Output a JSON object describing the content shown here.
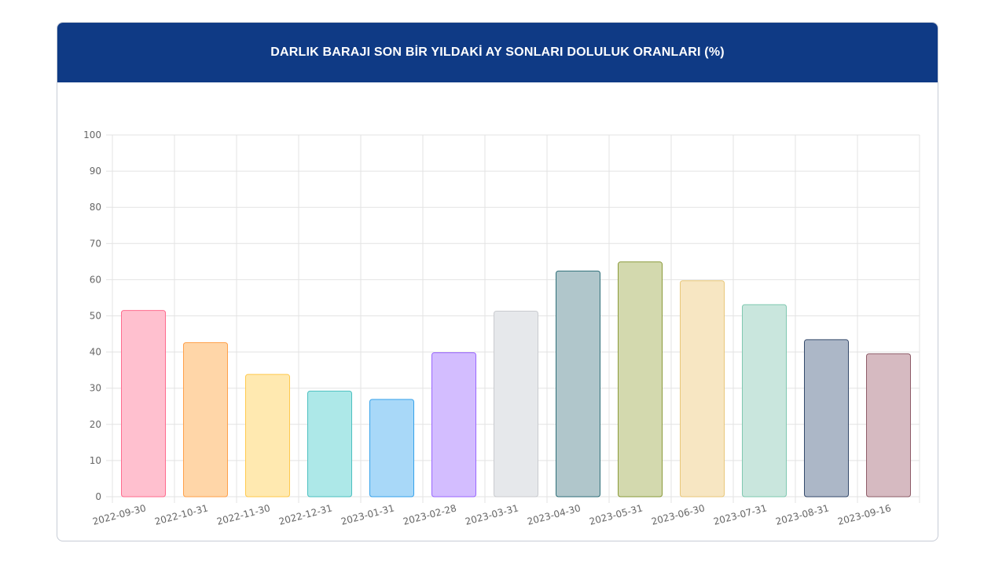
{
  "chart_data": {
    "type": "bar",
    "title": "DARLIK BARAJI SON BİR YILDAKİ AY SONLARI DOLULUK ORANLARI (%)",
    "categories": [
      "2022-09-30",
      "2022-10-31",
      "2022-11-30",
      "2022-12-31",
      "2023-01-31",
      "2023-02-28",
      "2023-03-31",
      "2023-04-30",
      "2023-05-31",
      "2023-06-30",
      "2023-07-31",
      "2023-08-31",
      "2023-09-16"
    ],
    "values": [
      51.5,
      42.6,
      33.8,
      29.2,
      26.9,
      39.8,
      51.3,
      62.4,
      64.9,
      59.7,
      53.1,
      43.4,
      39.5
    ],
    "ylim": [
      0,
      100
    ],
    "yticks": [
      0,
      10,
      20,
      30,
      40,
      50,
      60,
      70,
      80,
      90,
      100
    ],
    "grid": true,
    "legend": "none",
    "xlabel": "",
    "ylabel": "",
    "colors": {
      "fill": [
        "#ffc0cf",
        "#ffd6a8",
        "#ffe9b0",
        "#ade8e8",
        "#a8d8f8",
        "#d3bdff",
        "#e6e8eb",
        "#b0c6cb",
        "#d3d9ae",
        "#f7e6c2",
        "#c9e6dd",
        "#acb7c7",
        "#d6bac1"
      ],
      "stroke": [
        "#ff6b8e",
        "#ffa04a",
        "#ffc94d",
        "#4cc0c0",
        "#36a2eb",
        "#9966ff",
        "#c9cbcf",
        "#2f6f79",
        "#8a9a3a",
        "#e8c77a",
        "#7fc8b0",
        "#34496b",
        "#8e5c68"
      ],
      "header": "#0f3a85"
    }
  }
}
